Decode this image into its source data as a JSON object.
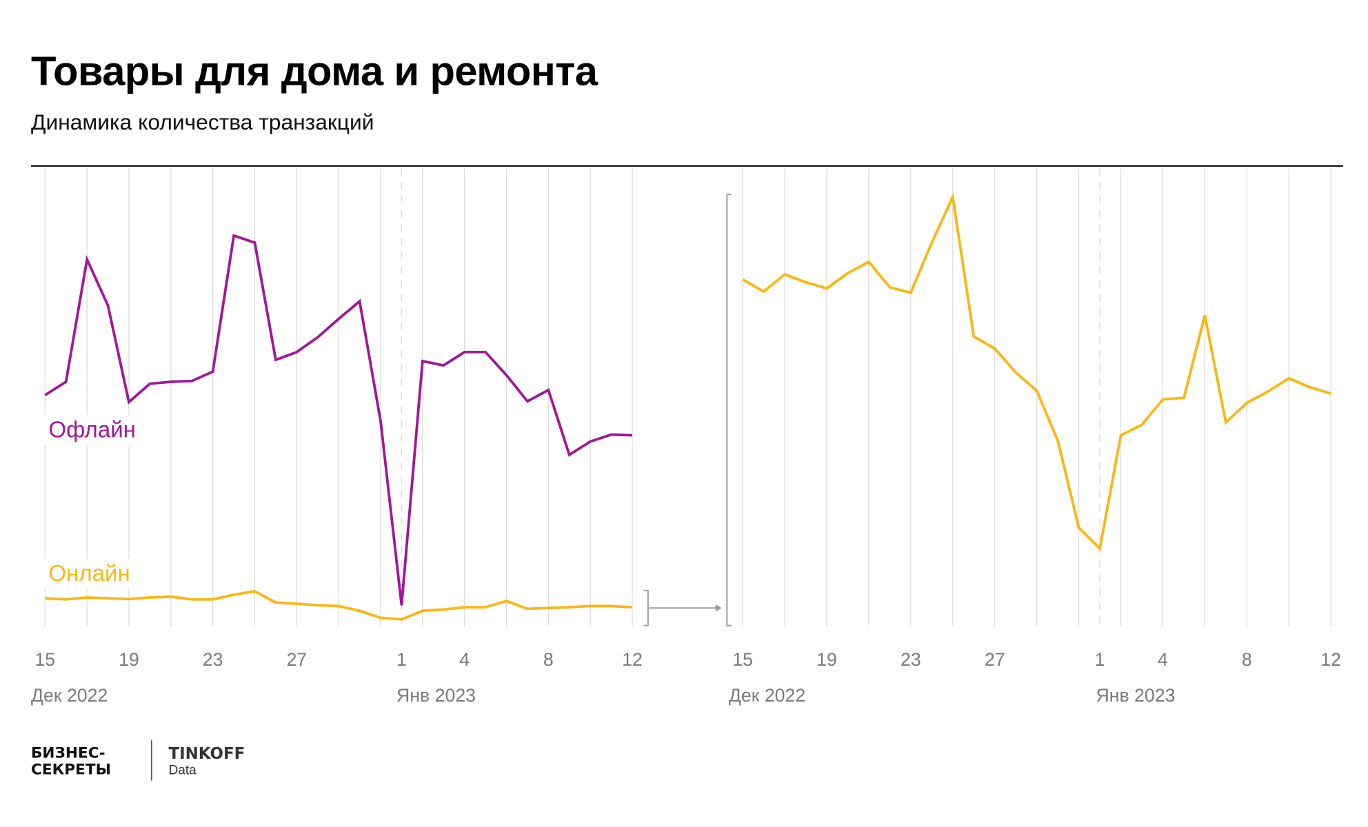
{
  "header": {
    "title": "Товары для дома и ремонта",
    "subtitle": "Динамика количества транзакций"
  },
  "logos": {
    "brand1_line1": "БИЗНЕС-",
    "brand1_line2": "СЕКРЕТЫ",
    "brand2_name": "TINKOFF",
    "brand2_sub": "Data"
  },
  "colors": {
    "offline": "#a0179a",
    "online": "#fbb614",
    "grid": "#dcdcdc",
    "annotation": "#9a9a9a"
  },
  "chart_data": [
    {
      "type": "line",
      "title": "",
      "xlabel": "",
      "ylabel": "",
      "y_axis_shown": false,
      "grid": "vertical, every 2 days; dashed line at 1 Jan",
      "x": [
        "2022-12-15",
        "2022-12-16",
        "2022-12-17",
        "2022-12-18",
        "2022-12-19",
        "2022-12-20",
        "2022-12-21",
        "2022-12-22",
        "2022-12-23",
        "2022-12-24",
        "2022-12-25",
        "2022-12-26",
        "2022-12-27",
        "2022-12-28",
        "2022-12-29",
        "2022-12-30",
        "2022-12-31",
        "2023-01-01",
        "2023-01-02",
        "2023-01-03",
        "2023-01-04",
        "2023-01-05",
        "2023-01-06",
        "2023-01-07",
        "2023-01-08",
        "2023-01-09",
        "2023-01-10",
        "2023-01-11",
        "2023-01-12"
      ],
      "tick_labels": [
        {
          "date": "2022-12-15",
          "label": "15"
        },
        {
          "date": "2022-12-19",
          "label": "19"
        },
        {
          "date": "2022-12-23",
          "label": "23"
        },
        {
          "date": "2022-12-27",
          "label": "27"
        },
        {
          "date": "2023-01-01",
          "label": "1"
        },
        {
          "date": "2023-01-04",
          "label": "4"
        },
        {
          "date": "2023-01-08",
          "label": "8"
        },
        {
          "date": "2023-01-12",
          "label": "12"
        }
      ],
      "month_labels": [
        "Дек 2022",
        "Янв 2023"
      ],
      "series": [
        {
          "name": "Офлайн",
          "color": "#a0179a",
          "values": [
            59.2,
            62.6,
            93.9,
            82.1,
            57.4,
            62.1,
            62.6,
            62.8,
            65.2,
            100,
            98.2,
            68.2,
            70.2,
            74.0,
            78.7,
            83.2,
            52.5,
            5.4,
            67.9,
            66.8,
            70.2,
            70.2,
            64.3,
            57.6,
            60.5,
            43.9,
            47.3,
            49.1,
            48.9
          ]
        },
        {
          "name": "Онлайн",
          "color": "#fbb614",
          "values": [
            7.2,
            6.9,
            7.4,
            7.2,
            7.0,
            7.4,
            7.6,
            6.9,
            6.9,
            8.1,
            9.0,
            6.1,
            5.8,
            5.4,
            5.2,
            4.0,
            2.2,
            1.8,
            4.0,
            4.3,
            4.9,
            4.9,
            6.5,
            4.5,
            4.7,
            4.9,
            5.2,
            5.2,
            4.9
          ]
        }
      ]
    },
    {
      "type": "line",
      "title": "",
      "xlabel": "",
      "ylabel": "",
      "y_axis_shown": false,
      "grid": "vertical, every 2 days; dashed line at 1 Jan",
      "x": [
        "2022-12-15",
        "2022-12-16",
        "2022-12-17",
        "2022-12-18",
        "2022-12-19",
        "2022-12-20",
        "2022-12-21",
        "2022-12-22",
        "2022-12-23",
        "2022-12-24",
        "2022-12-25",
        "2022-12-26",
        "2022-12-27",
        "2022-12-28",
        "2022-12-29",
        "2022-12-30",
        "2022-12-31",
        "2023-01-01",
        "2023-01-02",
        "2023-01-03",
        "2023-01-04",
        "2023-01-05",
        "2023-01-06",
        "2023-01-07",
        "2023-01-08",
        "2023-01-09",
        "2023-01-10",
        "2023-01-11",
        "2023-01-12"
      ],
      "tick_labels": [
        {
          "date": "2022-12-15",
          "label": "15"
        },
        {
          "date": "2022-12-19",
          "label": "19"
        },
        {
          "date": "2022-12-23",
          "label": "23"
        },
        {
          "date": "2022-12-27",
          "label": "27"
        },
        {
          "date": "2023-01-01",
          "label": "1"
        },
        {
          "date": "2023-01-04",
          "label": "4"
        },
        {
          "date": "2023-01-08",
          "label": "8"
        },
        {
          "date": "2023-01-12",
          "label": "12"
        }
      ],
      "month_labels": [
        "Дек 2022",
        "Янв 2023"
      ],
      "series": [
        {
          "color": "#fbb614",
          "values": [
            88.8,
            85.7,
            90.1,
            88.1,
            86.5,
            90.4,
            93.3,
            86.8,
            85.4,
            98.2,
            109.9,
            74.2,
            71.1,
            65.0,
            60.3,
            47.5,
            25.3,
            19.9,
            48.9,
            51.6,
            58.1,
            58.5,
            79.6,
            52.2,
            57.2,
            60.1,
            63.5,
            61.2,
            59.6
          ]
        }
      ]
    }
  ]
}
